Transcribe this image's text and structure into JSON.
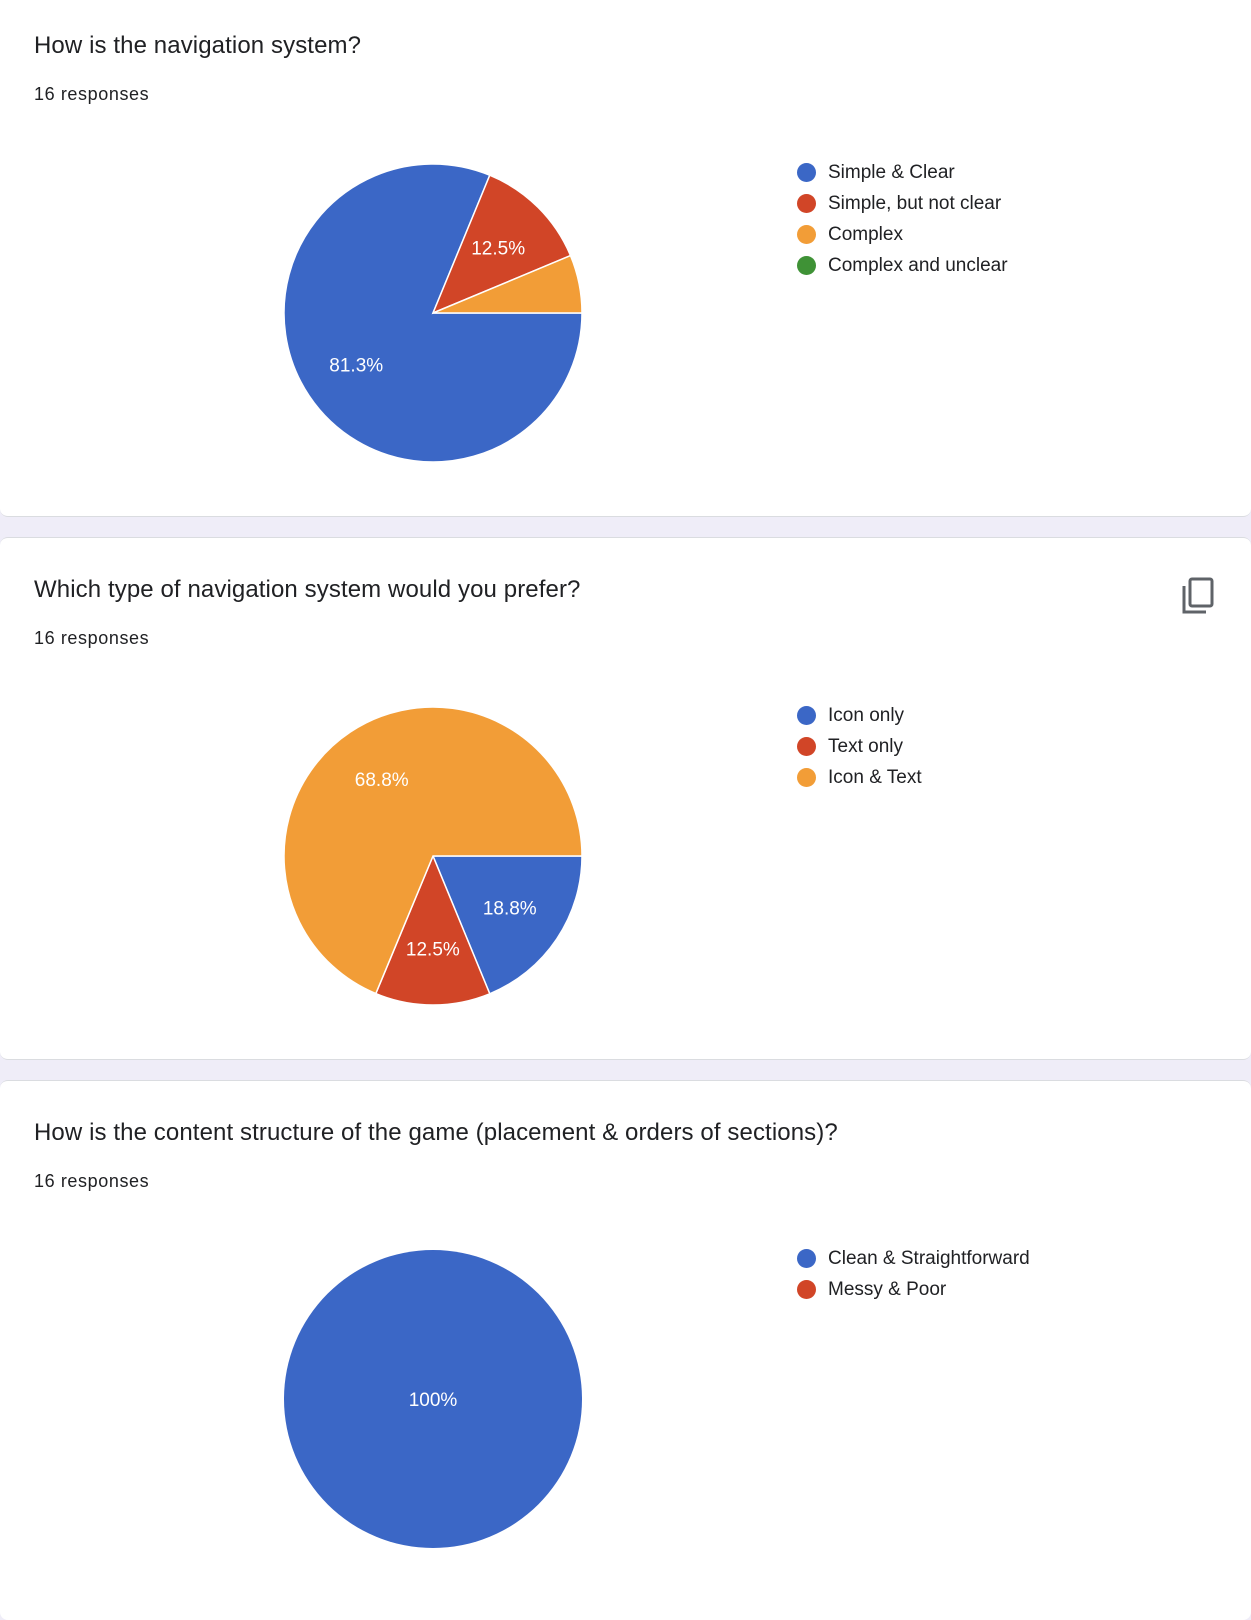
{
  "colors": {
    "blue": "#3b67c6",
    "red": "#d14527",
    "orange": "#f29d37",
    "green": "#3f9236"
  },
  "questions": [
    {
      "title": "How is the navigation system?",
      "responses": "16 responses",
      "legend": [
        "Simple & Clear",
        "Simple, but not clear",
        "Complex",
        "Complex and unclear"
      ],
      "copy_icon": false
    },
    {
      "title": "Which type of navigation system would you prefer?",
      "responses": "16 responses",
      "legend": [
        "Icon only",
        "Text only",
        "Icon & Text"
      ],
      "copy_icon": "copy-icon"
    },
    {
      "title": "How is the content structure of the game (placement & orders of sections)?",
      "responses": "16 responses",
      "legend": [
        "Clean & Straightforward",
        "Messy & Poor"
      ],
      "copy_icon": false
    }
  ],
  "chart_data": [
    {
      "type": "pie",
      "title": "How is the navigation system?",
      "legend_position": "right",
      "categories": [
        "Simple & Clear",
        "Simple, but not clear",
        "Complex",
        "Complex and unclear"
      ],
      "values": [
        81.3,
        12.5,
        6.3,
        0
      ],
      "labels": [
        "81.3%",
        "12.5%",
        "",
        ""
      ],
      "colors": [
        "#3b67c6",
        "#d14527",
        "#f29d37",
        "#3f9236"
      ]
    },
    {
      "type": "pie",
      "title": "Which type of navigation system would you prefer?",
      "legend_position": "right",
      "categories": [
        "Icon only",
        "Text only",
        "Icon & Text"
      ],
      "values": [
        18.8,
        12.5,
        68.8
      ],
      "labels": [
        "18.8%",
        "12.5%",
        "68.8%"
      ],
      "colors": [
        "#3b67c6",
        "#d14527",
        "#f29d37"
      ]
    },
    {
      "type": "pie",
      "title": "How is the content structure of the game (placement & orders of sections)?",
      "legend_position": "right",
      "categories": [
        "Clean & Straightforward",
        "Messy & Poor"
      ],
      "values": [
        100,
        0
      ],
      "labels": [
        "100%",
        ""
      ],
      "colors": [
        "#3b67c6",
        "#d14527"
      ]
    }
  ]
}
